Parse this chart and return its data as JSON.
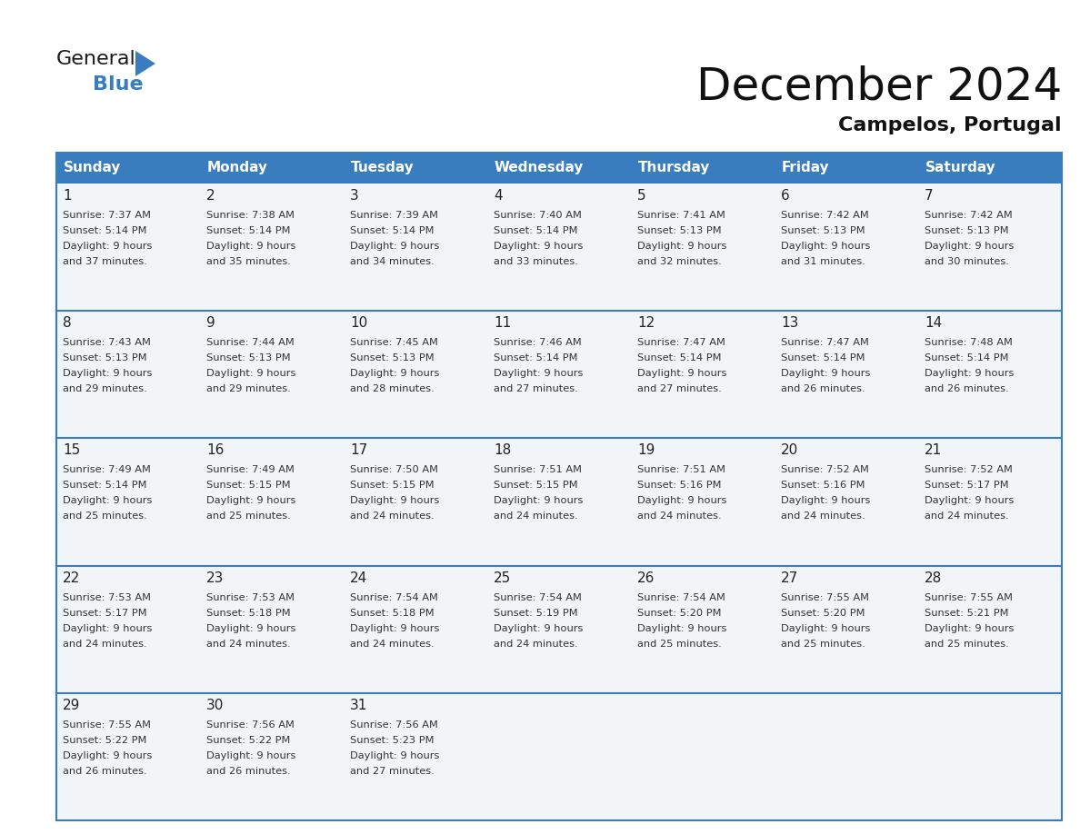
{
  "title": "December 2024",
  "subtitle": "Campelos, Portugal",
  "days_of_week": [
    "Sunday",
    "Monday",
    "Tuesday",
    "Wednesday",
    "Thursday",
    "Friday",
    "Saturday"
  ],
  "header_bg": "#3a7dbf",
  "header_text": "#ffffff",
  "row_bg": "#f2f5f8",
  "border_color": "#3a7dbf",
  "day_num_color": "#222222",
  "text_color": "#333333",
  "title_fontsize": 36,
  "subtitle_fontsize": 16,
  "header_fontsize": 11,
  "day_num_fontsize": 11,
  "cell_text_fontsize": 8.2,
  "logo_general_fontsize": 16,
  "logo_blue_fontsize": 16,
  "calendar_data": [
    [
      {
        "day": 1,
        "sunrise": "7:37 AM",
        "sunset": "5:14 PM",
        "daylight_h": "9 hours",
        "daylight_m": "and 37 minutes."
      },
      {
        "day": 2,
        "sunrise": "7:38 AM",
        "sunset": "5:14 PM",
        "daylight_h": "9 hours",
        "daylight_m": "and 35 minutes."
      },
      {
        "day": 3,
        "sunrise": "7:39 AM",
        "sunset": "5:14 PM",
        "daylight_h": "9 hours",
        "daylight_m": "and 34 minutes."
      },
      {
        "day": 4,
        "sunrise": "7:40 AM",
        "sunset": "5:14 PM",
        "daylight_h": "9 hours",
        "daylight_m": "and 33 minutes."
      },
      {
        "day": 5,
        "sunrise": "7:41 AM",
        "sunset": "5:13 PM",
        "daylight_h": "9 hours",
        "daylight_m": "and 32 minutes."
      },
      {
        "day": 6,
        "sunrise": "7:42 AM",
        "sunset": "5:13 PM",
        "daylight_h": "9 hours",
        "daylight_m": "and 31 minutes."
      },
      {
        "day": 7,
        "sunrise": "7:42 AM",
        "sunset": "5:13 PM",
        "daylight_h": "9 hours",
        "daylight_m": "and 30 minutes."
      }
    ],
    [
      {
        "day": 8,
        "sunrise": "7:43 AM",
        "sunset": "5:13 PM",
        "daylight_h": "9 hours",
        "daylight_m": "and 29 minutes."
      },
      {
        "day": 9,
        "sunrise": "7:44 AM",
        "sunset": "5:13 PM",
        "daylight_h": "9 hours",
        "daylight_m": "and 29 minutes."
      },
      {
        "day": 10,
        "sunrise": "7:45 AM",
        "sunset": "5:13 PM",
        "daylight_h": "9 hours",
        "daylight_m": "and 28 minutes."
      },
      {
        "day": 11,
        "sunrise": "7:46 AM",
        "sunset": "5:14 PM",
        "daylight_h": "9 hours",
        "daylight_m": "and 27 minutes."
      },
      {
        "day": 12,
        "sunrise": "7:47 AM",
        "sunset": "5:14 PM",
        "daylight_h": "9 hours",
        "daylight_m": "and 27 minutes."
      },
      {
        "day": 13,
        "sunrise": "7:47 AM",
        "sunset": "5:14 PM",
        "daylight_h": "9 hours",
        "daylight_m": "and 26 minutes."
      },
      {
        "day": 14,
        "sunrise": "7:48 AM",
        "sunset": "5:14 PM",
        "daylight_h": "9 hours",
        "daylight_m": "and 26 minutes."
      }
    ],
    [
      {
        "day": 15,
        "sunrise": "7:49 AM",
        "sunset": "5:14 PM",
        "daylight_h": "9 hours",
        "daylight_m": "and 25 minutes."
      },
      {
        "day": 16,
        "sunrise": "7:49 AM",
        "sunset": "5:15 PM",
        "daylight_h": "9 hours",
        "daylight_m": "and 25 minutes."
      },
      {
        "day": 17,
        "sunrise": "7:50 AM",
        "sunset": "5:15 PM",
        "daylight_h": "9 hours",
        "daylight_m": "and 24 minutes."
      },
      {
        "day": 18,
        "sunrise": "7:51 AM",
        "sunset": "5:15 PM",
        "daylight_h": "9 hours",
        "daylight_m": "and 24 minutes."
      },
      {
        "day": 19,
        "sunrise": "7:51 AM",
        "sunset": "5:16 PM",
        "daylight_h": "9 hours",
        "daylight_m": "and 24 minutes."
      },
      {
        "day": 20,
        "sunrise": "7:52 AM",
        "sunset": "5:16 PM",
        "daylight_h": "9 hours",
        "daylight_m": "and 24 minutes."
      },
      {
        "day": 21,
        "sunrise": "7:52 AM",
        "sunset": "5:17 PM",
        "daylight_h": "9 hours",
        "daylight_m": "and 24 minutes."
      }
    ],
    [
      {
        "day": 22,
        "sunrise": "7:53 AM",
        "sunset": "5:17 PM",
        "daylight_h": "9 hours",
        "daylight_m": "and 24 minutes."
      },
      {
        "day": 23,
        "sunrise": "7:53 AM",
        "sunset": "5:18 PM",
        "daylight_h": "9 hours",
        "daylight_m": "and 24 minutes."
      },
      {
        "day": 24,
        "sunrise": "7:54 AM",
        "sunset": "5:18 PM",
        "daylight_h": "9 hours",
        "daylight_m": "and 24 minutes."
      },
      {
        "day": 25,
        "sunrise": "7:54 AM",
        "sunset": "5:19 PM",
        "daylight_h": "9 hours",
        "daylight_m": "and 24 minutes."
      },
      {
        "day": 26,
        "sunrise": "7:54 AM",
        "sunset": "5:20 PM",
        "daylight_h": "9 hours",
        "daylight_m": "and 25 minutes."
      },
      {
        "day": 27,
        "sunrise": "7:55 AM",
        "sunset": "5:20 PM",
        "daylight_h": "9 hours",
        "daylight_m": "and 25 minutes."
      },
      {
        "day": 28,
        "sunrise": "7:55 AM",
        "sunset": "5:21 PM",
        "daylight_h": "9 hours",
        "daylight_m": "and 25 minutes."
      }
    ],
    [
      {
        "day": 29,
        "sunrise": "7:55 AM",
        "sunset": "5:22 PM",
        "daylight_h": "9 hours",
        "daylight_m": "and 26 minutes."
      },
      {
        "day": 30,
        "sunrise": "7:56 AM",
        "sunset": "5:22 PM",
        "daylight_h": "9 hours",
        "daylight_m": "and 26 minutes."
      },
      {
        "day": 31,
        "sunrise": "7:56 AM",
        "sunset": "5:23 PM",
        "daylight_h": "9 hours",
        "daylight_m": "and 27 minutes."
      },
      null,
      null,
      null,
      null
    ]
  ]
}
